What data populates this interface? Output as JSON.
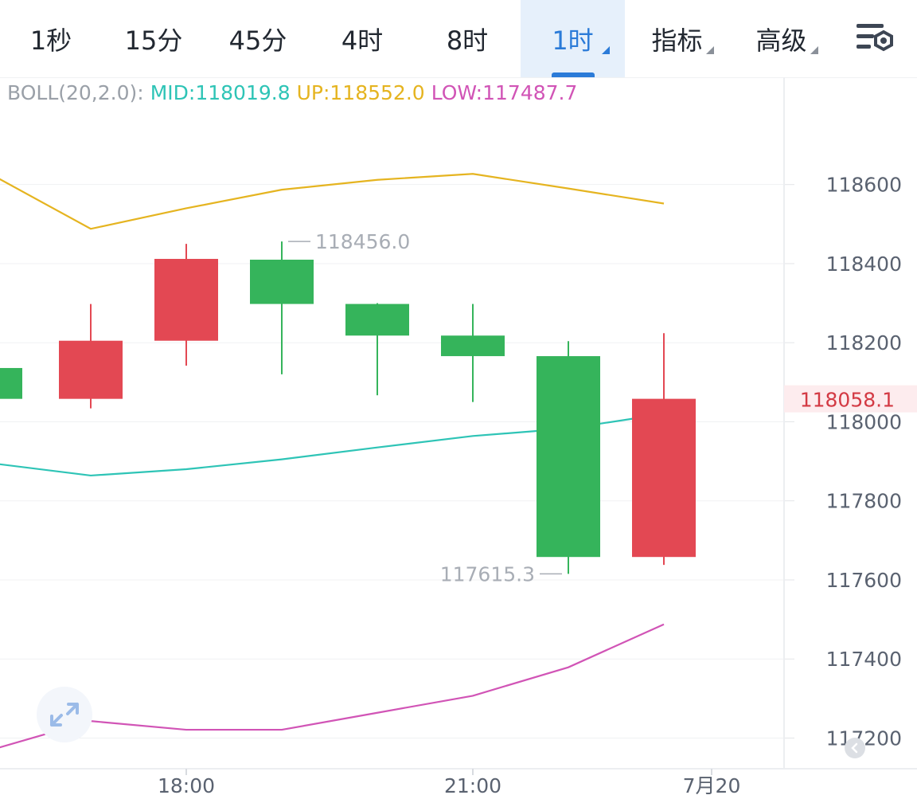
{
  "tabs": [
    {
      "label": "1秒",
      "active": false,
      "dropdown": false
    },
    {
      "label": "15分",
      "active": false,
      "dropdown": false
    },
    {
      "label": "45分",
      "active": false,
      "dropdown": false
    },
    {
      "label": "4时",
      "active": false,
      "dropdown": false
    },
    {
      "label": "8时",
      "active": false,
      "dropdown": false
    },
    {
      "label": "1时",
      "active": true,
      "dropdown": true
    },
    {
      "label": "指标",
      "active": false,
      "dropdown": true
    },
    {
      "label": "高级",
      "active": false,
      "dropdown": true
    }
  ],
  "settings_icon": "chart-settings-icon",
  "legend": {
    "name": "BOLL(20,2.0):",
    "mid": "MID:118019.8",
    "up": "UP:118552.0",
    "low": "LOW:117487.7"
  },
  "colors": {
    "up_candle": "#e34853",
    "down_candle": "#35b45b",
    "mid_line": "#2ec4b6",
    "up_line": "#e5b420",
    "low_line": "#d154b6",
    "accent": "#2b7bd8",
    "legend_name": "#9aa0a8",
    "price_tag": "#d33a44"
  },
  "chart_data": {
    "type": "candlestick",
    "indicator": "BOLL(20,2.0)",
    "ylim": [
      117100,
      118820
    ],
    "y_ticks": [
      "118600",
      "118400",
      "118200",
      "118000",
      "117800",
      "117600",
      "117400",
      "117200"
    ],
    "x_ticks": [
      {
        "label": "18:00",
        "index": 2
      },
      {
        "label": "21:00",
        "index": 5
      },
      {
        "label": "7月20",
        "index": 7.5
      }
    ],
    "candles": [
      {
        "open": 118136,
        "high": 118136,
        "low": 118058,
        "close": 118058
      },
      {
        "open": 118058,
        "high": 118298,
        "low": 118034,
        "close": 118205
      },
      {
        "open": 118205,
        "high": 118450,
        "low": 118142,
        "close": 118412
      },
      {
        "open": 118410,
        "high": 118456,
        "low": 118120,
        "close": 118298
      },
      {
        "open": 118298,
        "high": 118300,
        "low": 118067,
        "close": 118218
      },
      {
        "open": 118218,
        "high": 118298,
        "low": 118050,
        "close": 118166
      },
      {
        "open": 118166,
        "high": 118204,
        "low": 117615.3,
        "close": 117658
      },
      {
        "open": 117658,
        "high": 118224,
        "low": 117638,
        "close": 118058.1
      }
    ],
    "boll_up": [
      118620,
      118488,
      118540,
      118587,
      118612,
      118627,
      118590,
      118552.0
    ],
    "boll_mid": [
      117894,
      117864,
      117880,
      117905,
      117935,
      117964,
      117983,
      118019.8
    ],
    "boll_low": [
      117173,
      117243,
      117221,
      117221,
      117264,
      117307,
      117379,
      117487.7
    ],
    "annotations": {
      "high_label": "118456.0",
      "low_label": "117615.3"
    },
    "last_price": "118058.1"
  }
}
